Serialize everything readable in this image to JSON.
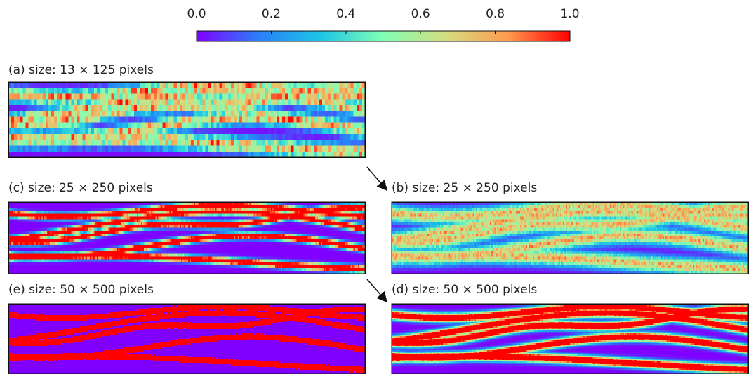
{
  "colorbar": {
    "xlim": [
      0,
      1
    ],
    "xticks": [
      {
        "value": 0,
        "label": "0.0"
      },
      0.2,
      0.4,
      0.6,
      0.8,
      {
        "value": 1,
        "label": "1.0"
      }
    ],
    "colormap": [
      "#8000ff",
      "#2a7ff9",
      "#1dc6e6",
      "#80ffb4",
      "#d4dd80",
      "#ff9a50",
      "#ff0000"
    ]
  },
  "panels": [
    {
      "label": "(a) size: 13 × 125 pixels"
    },
    {
      "label": "(c) size: 25 × 250 pixels"
    },
    {
      "label": "(b) size: 25 × 250 pixels"
    },
    {
      "label": "(e) size: 50 × 500 pixels"
    },
    {
      "label": "(d) size: 50 × 500 pixels"
    }
  ]
}
